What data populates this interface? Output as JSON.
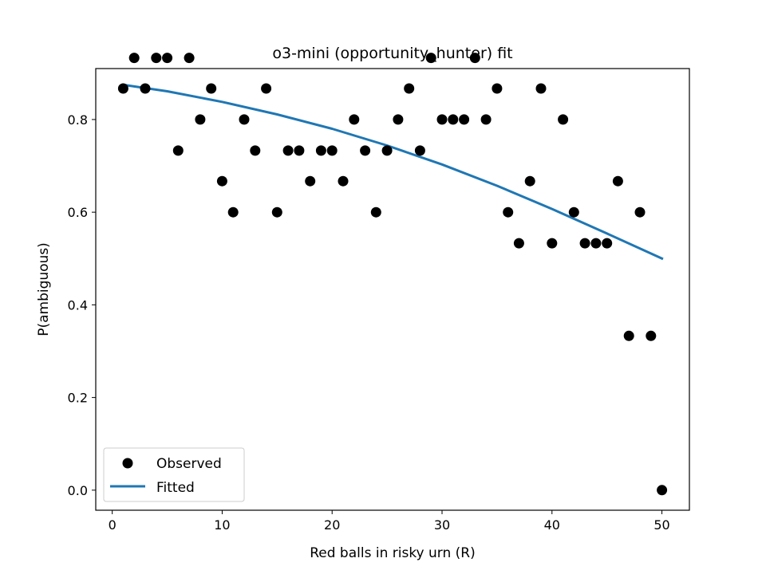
{
  "chart_data": {
    "type": "scatter",
    "title": "o3-mini (opportunity_hunter) fit",
    "xlabel": "Red balls in risky urn (R)",
    "ylabel": "P(ambiguous)",
    "xlim": [
      -1.5,
      52.5
    ],
    "ylim": [
      -0.0433,
      0.91
    ],
    "xticks": [
      0,
      10,
      20,
      30,
      40,
      50
    ],
    "yticks": [
      0.0,
      0.2,
      0.4,
      0.6,
      0.8
    ],
    "xtick_labels": [
      "0",
      "10",
      "20",
      "30",
      "40",
      "50"
    ],
    "ytick_labels": [
      "0.0",
      "0.2",
      "0.4",
      "0.6",
      "0.8"
    ],
    "grid": false,
    "legend_position": "lower-left",
    "series": [
      {
        "name": "Observed",
        "kind": "scatter",
        "color": "#000000",
        "x": [
          1,
          2,
          3,
          4,
          5,
          6,
          7,
          8,
          9,
          10,
          11,
          12,
          13,
          14,
          15,
          16,
          17,
          18,
          19,
          20,
          21,
          22,
          23,
          24,
          25,
          26,
          27,
          28,
          29,
          30,
          31,
          32,
          33,
          34,
          35,
          36,
          37,
          38,
          39,
          40,
          41,
          42,
          43,
          44,
          45,
          46,
          47,
          48,
          49,
          50
        ],
        "y": [
          0.867,
          0.933,
          0.867,
          0.933,
          0.933,
          0.733,
          0.933,
          0.8,
          0.867,
          0.667,
          0.6,
          0.8,
          0.733,
          0.867,
          0.6,
          0.733,
          0.733,
          0.667,
          0.733,
          0.733,
          0.667,
          0.8,
          0.733,
          0.6,
          0.733,
          0.8,
          0.867,
          0.733,
          0.933,
          0.8,
          0.8,
          0.8,
          0.933,
          0.8,
          0.867,
          0.6,
          0.533,
          0.667,
          0.867,
          0.533,
          0.8,
          0.6,
          0.533,
          0.533,
          0.533,
          0.667,
          0.333,
          0.6,
          0.333,
          0.0
        ]
      },
      {
        "name": "Fitted",
        "kind": "line",
        "color": "#1f77b4",
        "x": [
          1,
          5,
          10,
          15,
          20,
          25,
          30,
          35,
          40,
          45,
          50
        ],
        "y": [
          0.875,
          0.861,
          0.838,
          0.811,
          0.78,
          0.744,
          0.703,
          0.657,
          0.607,
          0.554,
          0.5
        ]
      }
    ],
    "legend": [
      {
        "label": "Observed",
        "marker": "dot"
      },
      {
        "label": "Fitted",
        "marker": "line"
      }
    ]
  }
}
